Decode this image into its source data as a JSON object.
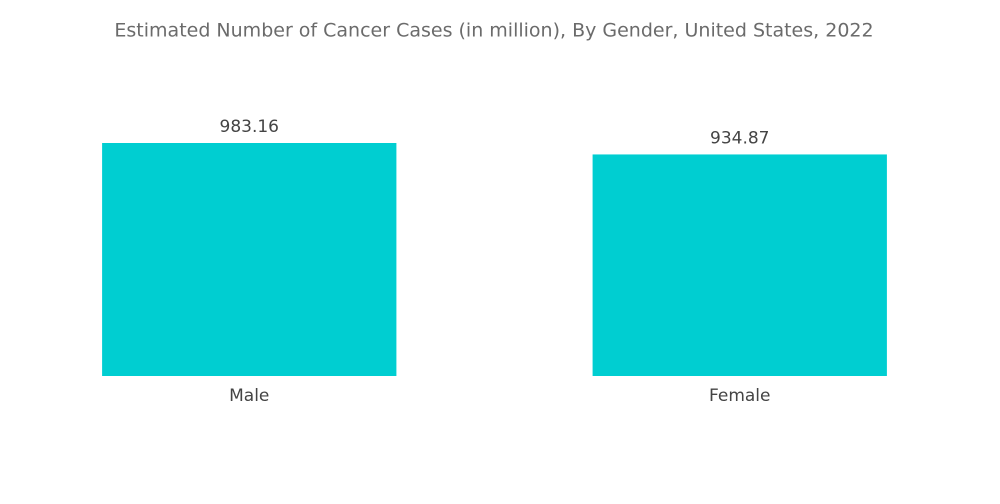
{
  "chart_data": {
    "type": "bar",
    "title": "Estimated Number of Cancer Cases (in million), By Gender, United States, 2022",
    "categories": [
      "Male",
      "Female"
    ],
    "values": [
      983.16,
      934.87
    ],
    "color": "#00CED1"
  }
}
